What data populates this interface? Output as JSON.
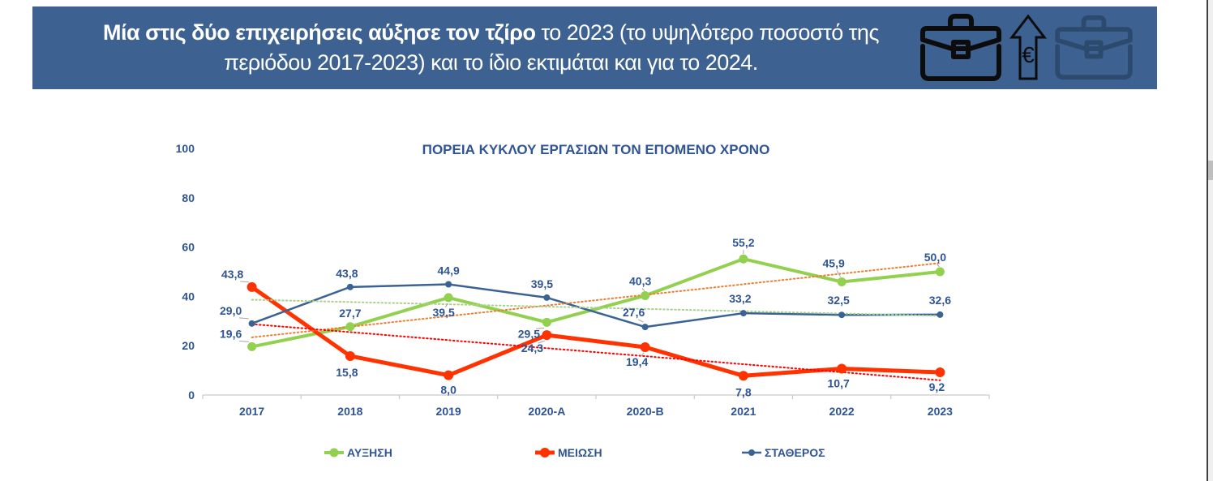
{
  "banner": {
    "bold_text": "Μία στις δύο επιχειρήσεις αύξησε τον τζίρο",
    "rest_text": " το 2023 (το υψηλότερο ποσοστό της περιόδου 2017-2023) και το ίδιο εκτιμάται και για το 2024.",
    "background_color": "#3D6190",
    "icons": [
      "briefcase-increase-icon",
      "arrow-up-euro-icon",
      "briefcase-steady-icon"
    ]
  },
  "chart_data": {
    "type": "line",
    "title": "ΠΟΡΕΙΑ ΚΥΚΛΟΥ ΕΡΓΑΣΙΩΝ ΤΟΝ ΕΠΟΜΕΝΟ ΧΡΟΝΟ",
    "categories": [
      "2017",
      "2018",
      "2019",
      "2020-A",
      "2020-B",
      "2021",
      "2022",
      "2023"
    ],
    "series": [
      {
        "name": "ΑΥΞΗΣΗ",
        "color": "#92D050",
        "values": [
          19.6,
          27.7,
          39.5,
          29.5,
          40.3,
          55.2,
          45.9,
          50.0
        ],
        "trendline": "linear",
        "trendline_color": "#ED7D31",
        "label_offsets": [
          [
            -26,
            -11,
            1
          ],
          [
            0,
            -12,
            0
          ],
          [
            -6,
            23,
            1
          ],
          [
            -22,
            19,
            1
          ],
          [
            -6,
            -13,
            1
          ],
          [
            0,
            -15,
            1
          ],
          [
            -10,
            -18,
            1
          ],
          [
            -6,
            -13,
            1
          ]
        ]
      },
      {
        "name": "ΜΕΙΩΣΗ",
        "color": "#FF3200",
        "values": [
          43.8,
          15.8,
          8.0,
          24.3,
          19.4,
          7.8,
          10.7,
          9.2
        ],
        "trendline": "linear",
        "trendline_color": "#FF0000",
        "label_offsets": [
          [
            -24,
            -11,
            1
          ],
          [
            -4,
            25,
            0
          ],
          [
            0,
            23,
            0
          ],
          [
            -18,
            21,
            1
          ],
          [
            -10,
            23,
            1
          ],
          [
            0,
            25,
            0
          ],
          [
            -4,
            23,
            0
          ],
          [
            -4,
            23,
            0
          ]
        ]
      },
      {
        "name": "ΣΤΑΘΕΡΟΣ",
        "color": "#3A6394",
        "values": [
          29.0,
          43.8,
          44.9,
          39.5,
          27.6,
          33.2,
          32.5,
          32.6
        ],
        "trendline": "linear",
        "trendline_color": "#A9D18E",
        "label_offsets": [
          [
            -26,
            -11,
            1
          ],
          [
            -4,
            -12,
            0
          ],
          [
            0,
            -12,
            0
          ],
          [
            -6,
            -12,
            0
          ],
          [
            -14,
            -13,
            1
          ],
          [
            -4,
            -13,
            0
          ],
          [
            -4,
            -13,
            0
          ],
          [
            0,
            -13,
            0
          ]
        ]
      }
    ],
    "ylim": [
      0,
      100
    ],
    "yticks": [
      0,
      20,
      40,
      60,
      80,
      100
    ],
    "decimal_separator": ",",
    "grid": false,
    "data_labels": true,
    "legend_position": "bottom",
    "text_color": "#2F5496",
    "axis_color": "#C9C9C9",
    "leader_color": "#A6A6A6"
  }
}
